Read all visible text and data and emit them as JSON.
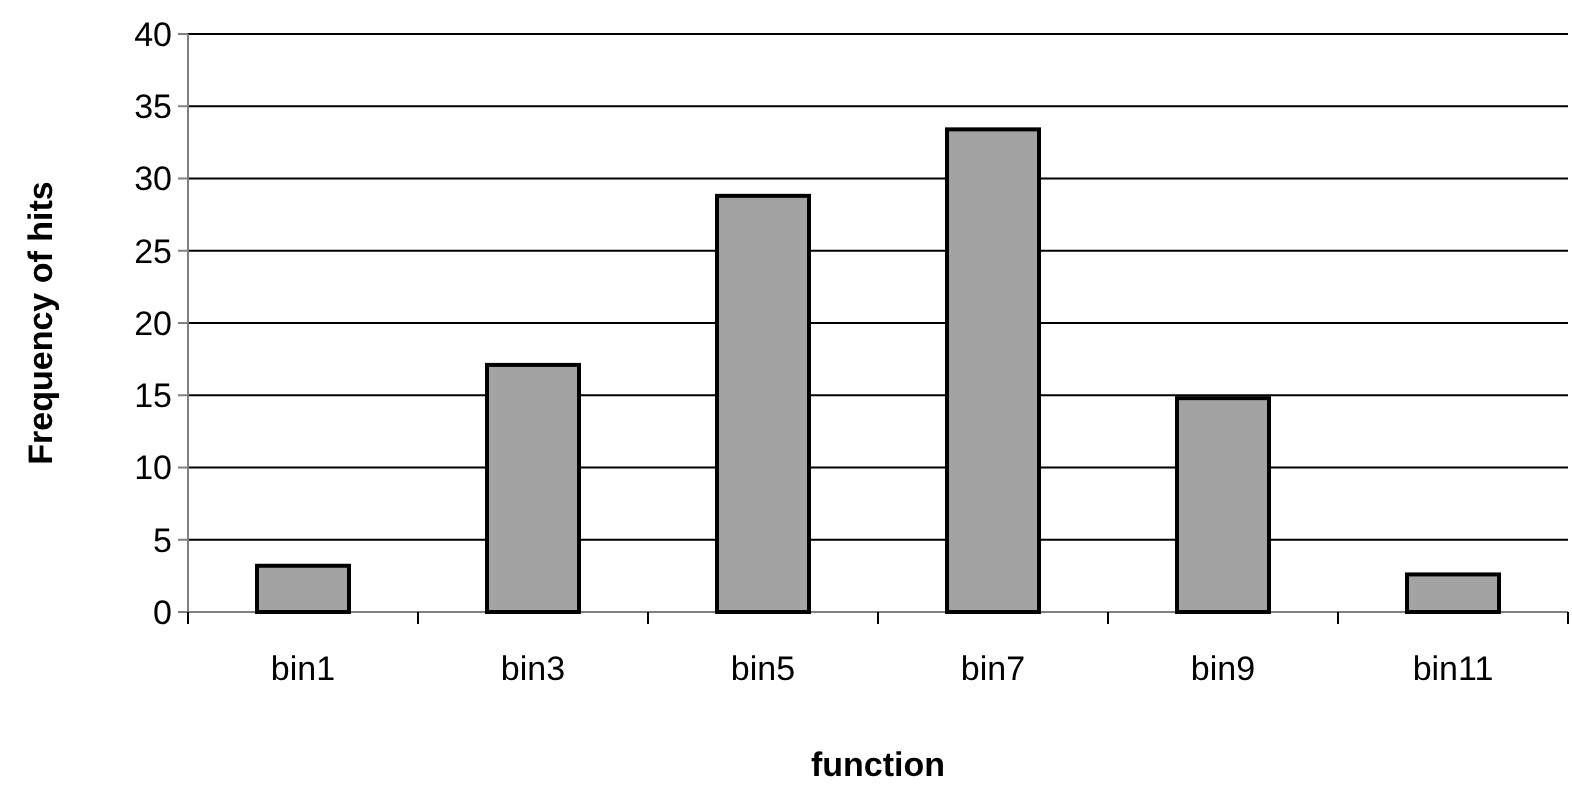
{
  "chart_data": {
    "type": "bar",
    "xlabel": "function",
    "ylabel": "Frequency of hits",
    "categories": [
      "bin1",
      "bin3",
      "bin5",
      "bin7",
      "bin9",
      "bin11"
    ],
    "values": [
      3.2,
      17.1,
      28.8,
      33.4,
      14.8,
      2.6
    ],
    "color": "#a3a3a3",
    "ylim": [
      0,
      40
    ],
    "yticks": [
      0,
      5,
      10,
      15,
      20,
      25,
      30,
      35,
      40
    ],
    "grid": "y"
  }
}
